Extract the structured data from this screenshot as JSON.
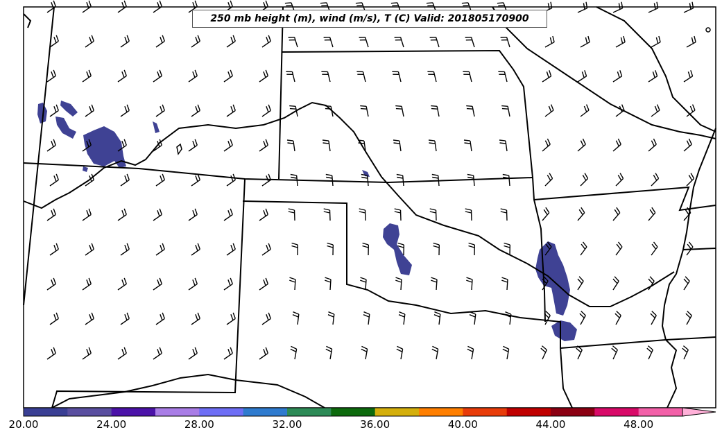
{
  "title": "250 mb height (m), wind (m/s), T (C) Valid: 201805170900",
  "colorbar": {
    "tick_labels": [
      "20.00",
      "24.00",
      "28.00",
      "32.00",
      "36.00",
      "40.00",
      "44.00",
      "48.00"
    ],
    "colors": [
      "#3a3f94",
      "#5a4fa0",
      "#4b12a8",
      "#a97de6",
      "#6e6ef5",
      "#2f7bcf",
      "#2e8b57",
      "#0d6a0d",
      "#d4af0c",
      "#ff7f00",
      "#e83c0a",
      "#c00000",
      "#8b0012",
      "#d80a68",
      "#f260a8",
      "#ffb0d8"
    ],
    "extend": "max"
  },
  "colors": {
    "precip_patch": "#3f4294",
    "lines": "#000000"
  }
}
